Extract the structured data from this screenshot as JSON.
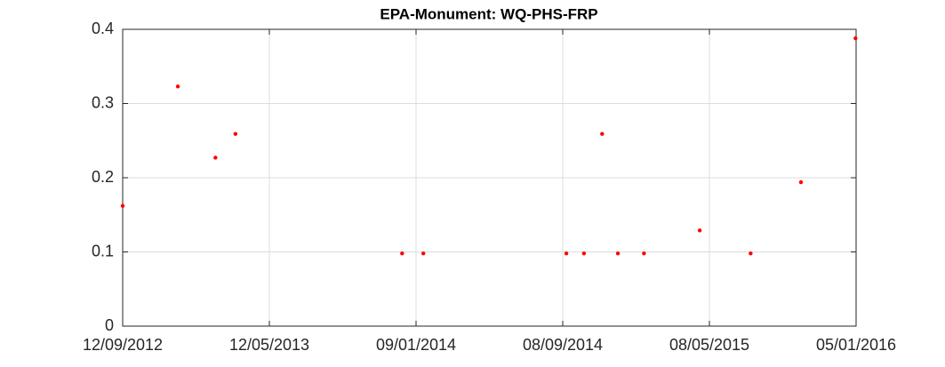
{
  "chart_data": {
    "type": "scatter",
    "title": "EPA-Monument: WQ-PHS-FRP",
    "x": [
      "2012-09-12",
      "2012-12-12",
      "2013-02-12",
      "2013-03-17",
      "2013-12-17",
      "2014-01-21",
      "2014-09-14",
      "2014-10-13",
      "2014-11-12",
      "2014-12-08",
      "2015-01-20",
      "2015-04-22",
      "2015-07-15",
      "2015-10-06",
      "2016-01-04"
    ],
    "values": [
      0.162,
      0.323,
      0.227,
      0.259,
      0.098,
      0.098,
      0.098,
      0.098,
      0.259,
      0.098,
      0.098,
      0.129,
      0.098,
      0.194,
      0.388
    ],
    "color": "#ff0000",
    "xlim": [
      "2012-09-12",
      "2016-01-05"
    ],
    "xticks": [
      {
        "value": "2012-09-12",
        "label": "12/09/2012"
      },
      {
        "value": "2013-05-12",
        "label": "12/05/2013"
      },
      {
        "value": "2014-01-09",
        "label": "09/01/2014"
      },
      {
        "value": "2014-09-08",
        "label": "08/09/2014"
      },
      {
        "value": "2015-05-08",
        "label": "08/05/2015"
      },
      {
        "value": "2016-01-05",
        "label": "05/01/2016"
      }
    ],
    "ylim": [
      0,
      0.4
    ],
    "yticks": [
      0,
      0.1,
      0.2,
      0.3,
      0.4
    ],
    "grid": true
  }
}
